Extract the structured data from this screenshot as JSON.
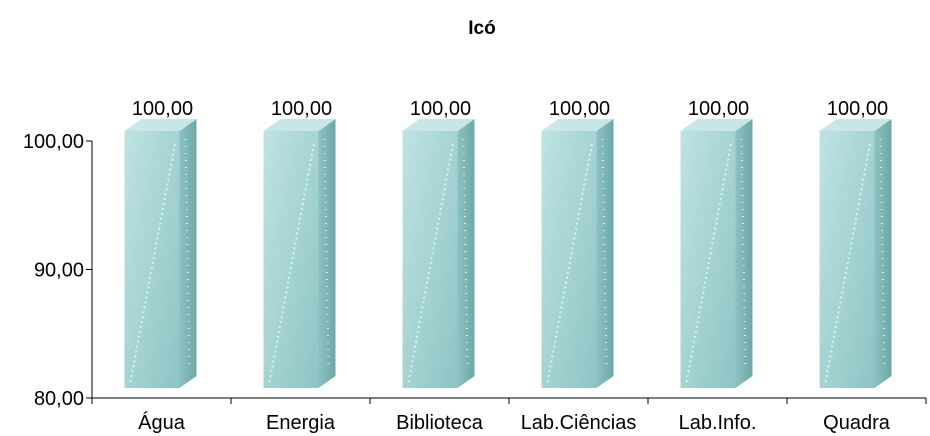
{
  "chart_data": {
    "type": "bar",
    "title": "Icó",
    "categories": [
      "Água",
      "Energia",
      "Biblioteca",
      "Lab.Ciências",
      "Lab.Info.",
      "Quadra"
    ],
    "series": [
      {
        "values": [
          100.0,
          100.0,
          100.0,
          100.0,
          100.0,
          100.0
        ]
      }
    ],
    "data_labels": [
      "100,00",
      "100,00",
      "100,00",
      "100,00",
      "100,00",
      "100,00"
    ],
    "yticks": [
      "80,00",
      "90,00",
      "100,00"
    ],
    "ylim": [
      80,
      100
    ],
    "xlabel": "",
    "ylabel": "",
    "grid": false,
    "legend": "none",
    "style": "3d-column",
    "colors": {
      "bar_front": "#a9d6d6",
      "bar_side": "#7fb4b4",
      "bar_top": "#c8e6e6",
      "axis": "#000000"
    }
  }
}
